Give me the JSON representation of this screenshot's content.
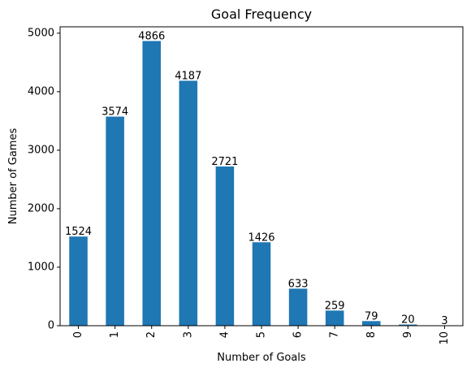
{
  "chart_data": {
    "type": "bar",
    "title": "Goal Frequency",
    "xlabel": "Number of Goals",
    "ylabel": "Number of Games",
    "categories": [
      "0",
      "1",
      "2",
      "3",
      "4",
      "5",
      "6",
      "7",
      "8",
      "9",
      "10"
    ],
    "values": [
      1524,
      3574,
      4866,
      4187,
      2721,
      1426,
      633,
      259,
      79,
      20,
      3
    ],
    "data_labels": [
      "1524",
      "3574",
      "4866",
      "4187",
      "2721",
      "1426",
      "633",
      "259",
      "79",
      "20",
      "3"
    ],
    "y_ticks": [
      0,
      1000,
      2000,
      3000,
      4000,
      5000
    ],
    "y_tick_labels": [
      "0",
      "1000",
      "2000",
      "3000",
      "4000",
      "5000"
    ],
    "ylim": [
      0,
      5109
    ],
    "bar_color": "#1f77b4",
    "grid": false,
    "legend": "none",
    "x_tick_rotation": "vertical"
  }
}
